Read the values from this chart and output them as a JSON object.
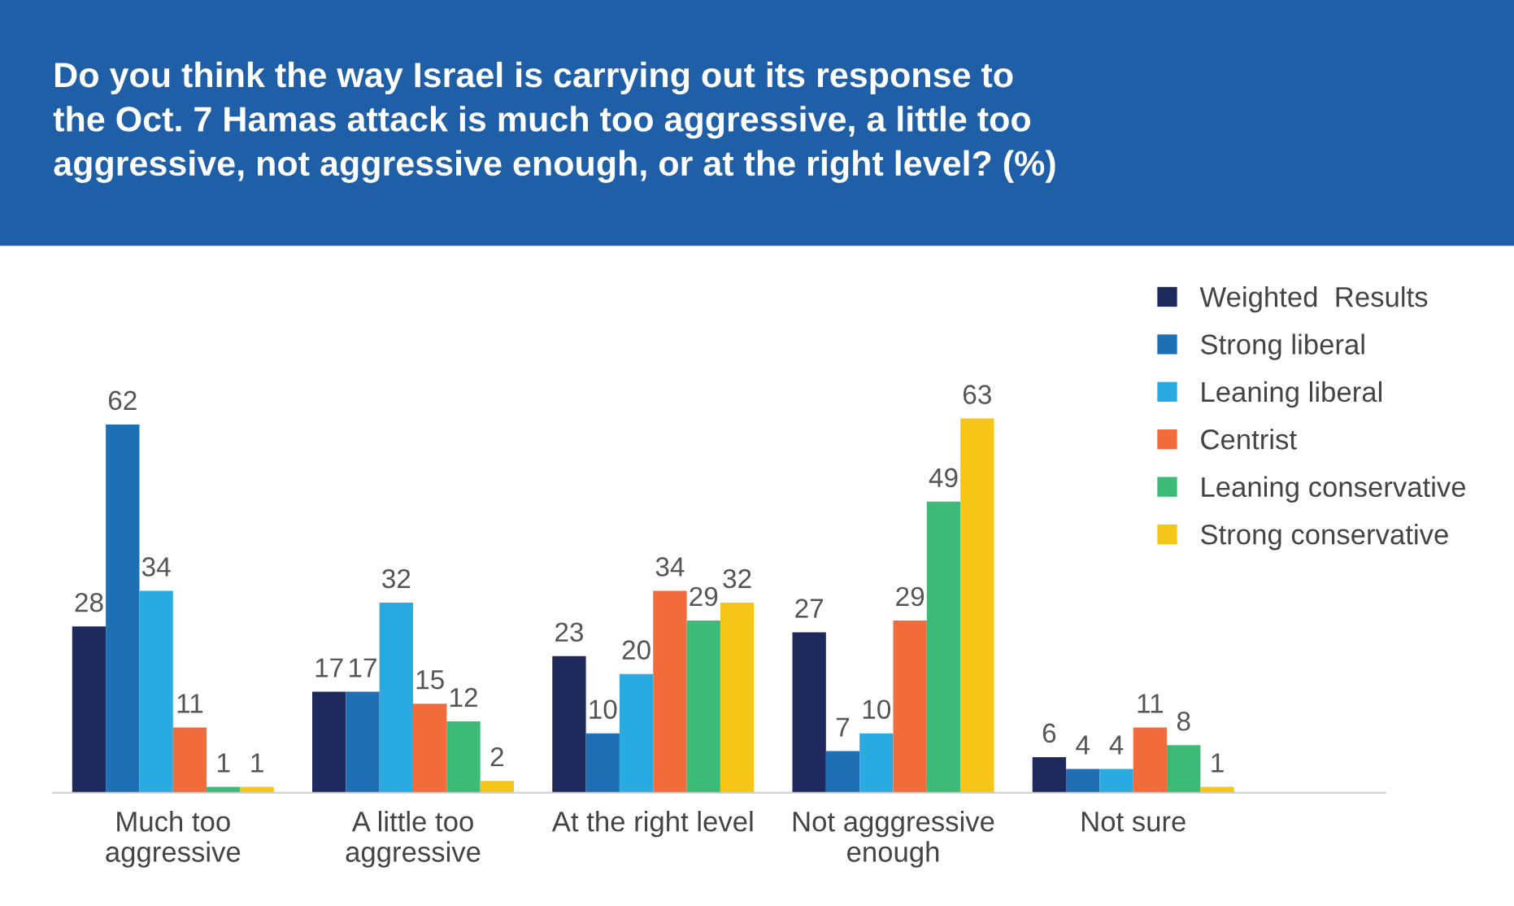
{
  "chart_data": {
    "type": "bar",
    "title": "Do you think the way Israel is carrying out its response to\nthe Oct. 7 Hamas attack is much too aggressive, a little too\naggressive, not aggressive enough, or at the right level? (%)",
    "categories": [
      "Much too\naggressive",
      "A little too\naggressive",
      "At the right level",
      "Not agggressive\nenough",
      "Not sure"
    ],
    "series": [
      {
        "name": "Weighted  Results",
        "color": "#1f2a5c",
        "values": [
          28,
          17,
          23,
          27,
          6
        ]
      },
      {
        "name": "Strong liberal",
        "color": "#1f6fb5",
        "values": [
          62,
          17,
          10,
          7,
          4
        ]
      },
      {
        "name": "Leaning liberal",
        "color": "#29abe2",
        "values": [
          34,
          32,
          20,
          10,
          4
        ]
      },
      {
        "name": "Centrist",
        "color": "#f26b3a",
        "values": [
          11,
          15,
          34,
          29,
          11
        ]
      },
      {
        "name": "Leaning conservative",
        "color": "#3dba78",
        "values": [
          1,
          12,
          29,
          49,
          8
        ]
      },
      {
        "name": "Strong conservative",
        "color": "#f5c518",
        "values": [
          1,
          2,
          32,
          63,
          1
        ]
      }
    ],
    "data_labels": true,
    "legend": "top right",
    "grid": false
  }
}
